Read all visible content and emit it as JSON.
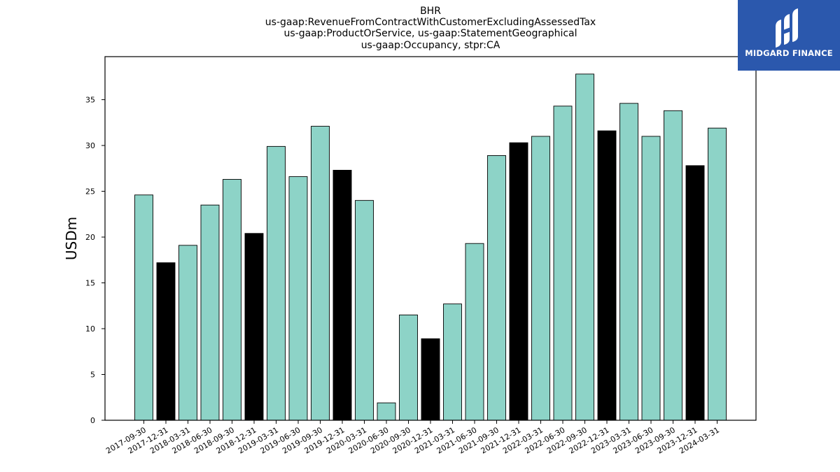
{
  "chart_data": {
    "type": "bar",
    "title_lines": [
      "BHR",
      "us-gaap:RevenueFromContractWithCustomerExcludingAssessedTax",
      "us-gaap:ProductOrService, us-gaap:StatementGeographical",
      "us-gaap:Occupancy, stpr:CA"
    ],
    "ylabel": "USDm",
    "xlabel": "",
    "ylim": [
      0,
      39.7
    ],
    "yticks": [
      0,
      5,
      10,
      15,
      20,
      25,
      30,
      35
    ],
    "categories": [
      "2017-09-30",
      "2017-12-31",
      "2018-03-31",
      "2018-06-30",
      "2018-09-30",
      "2018-12-31",
      "2019-03-31",
      "2019-06-30",
      "2019-09-30",
      "2019-12-31",
      "2020-03-31",
      "2020-06-30",
      "2020-09-30",
      "2020-12-31",
      "2021-03-31",
      "2021-06-30",
      "2021-09-30",
      "2021-12-31",
      "2022-03-31",
      "2022-06-30",
      "2022-09-30",
      "2022-12-31",
      "2023-03-31",
      "2023-06-30",
      "2023-09-30",
      "2023-12-31",
      "2024-03-31"
    ],
    "values": [
      24.6,
      17.2,
      19.1,
      23.5,
      26.3,
      20.4,
      29.9,
      26.6,
      32.1,
      27.3,
      24.0,
      1.9,
      11.5,
      8.9,
      12.7,
      19.3,
      28.9,
      30.3,
      31.0,
      34.3,
      37.8,
      31.6,
      34.6,
      31.0,
      33.8,
      27.8,
      31.9
    ],
    "bar_colors": [
      "#8dd3c7",
      "#000000",
      "#8dd3c7",
      "#8dd3c7",
      "#8dd3c7",
      "#000000",
      "#8dd3c7",
      "#8dd3c7",
      "#8dd3c7",
      "#000000",
      "#8dd3c7",
      "#8dd3c7",
      "#8dd3c7",
      "#000000",
      "#8dd3c7",
      "#8dd3c7",
      "#8dd3c7",
      "#000000",
      "#8dd3c7",
      "#8dd3c7",
      "#8dd3c7",
      "#000000",
      "#8dd3c7",
      "#8dd3c7",
      "#8dd3c7",
      "#000000",
      "#8dd3c7"
    ],
    "grid": false,
    "legend": "none"
  },
  "logo": {
    "text": "MIDGARD FINANCE",
    "background": "#2b58ad",
    "icon": "midgard-logo-icon"
  }
}
